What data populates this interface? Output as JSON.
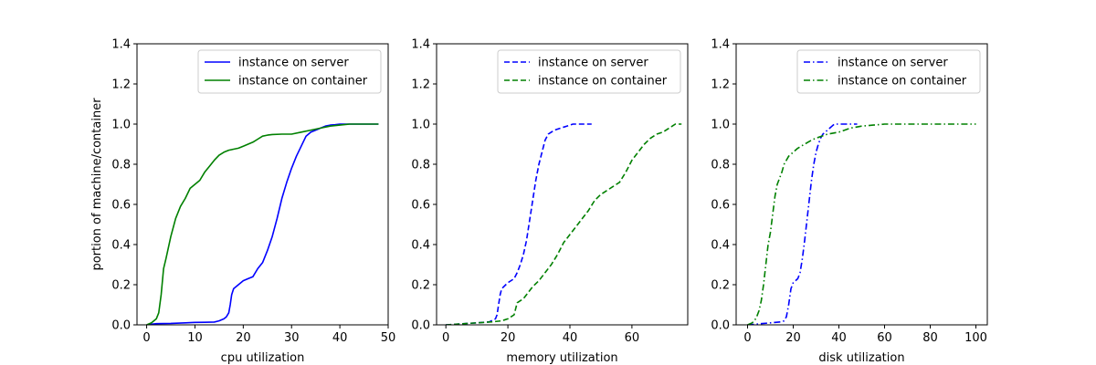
{
  "figure": {
    "ylabel": "portion of machine/container"
  },
  "chart_data": [
    {
      "type": "line",
      "xlabel": "cpu utilization",
      "ylabel": "portion of machine/container",
      "xlim": [
        -2,
        50
      ],
      "ylim": [
        0,
        1.4
      ],
      "xticks": [
        0,
        10,
        20,
        30,
        40,
        50
      ],
      "yticks": [
        0.0,
        0.2,
        0.4,
        0.6,
        0.8,
        1.0,
        1.2,
        1.4
      ],
      "grid": false,
      "legend": "top-right",
      "series": [
        {
          "name": "instance on server",
          "color": "#0000ff",
          "dash": "solid",
          "x": [
            0,
            1,
            2,
            5,
            8,
            10,
            12,
            14,
            15,
            16,
            16.5,
            17,
            17.3,
            17.6,
            18,
            19,
            20,
            21,
            22,
            23,
            24,
            25,
            26,
            27,
            28,
            29,
            30,
            31,
            32,
            33,
            34,
            35,
            36,
            37,
            38,
            39,
            40,
            42,
            44,
            46,
            48
          ],
          "y": [
            0.0,
            0.003,
            0.006,
            0.007,
            0.01,
            0.012,
            0.013,
            0.014,
            0.02,
            0.03,
            0.04,
            0.06,
            0.1,
            0.15,
            0.18,
            0.2,
            0.22,
            0.23,
            0.24,
            0.28,
            0.31,
            0.37,
            0.44,
            0.53,
            0.63,
            0.71,
            0.78,
            0.84,
            0.89,
            0.94,
            0.96,
            0.97,
            0.98,
            0.99,
            0.995,
            0.997,
            1.0,
            1.0,
            1.0,
            1.0,
            1.0
          ]
        },
        {
          "name": "instance on container",
          "color": "#008000",
          "dash": "solid",
          "x": [
            0,
            1,
            2,
            2.5,
            3,
            3.5,
            4,
            5,
            6,
            7,
            8,
            9,
            10,
            11,
            12,
            13,
            14,
            15,
            16,
            17,
            18,
            19,
            20,
            21,
            22,
            23,
            24,
            25,
            26,
            28,
            30,
            32,
            34,
            36,
            38,
            40,
            42,
            45,
            48
          ],
          "y": [
            0.0,
            0.01,
            0.03,
            0.06,
            0.15,
            0.28,
            0.33,
            0.44,
            0.53,
            0.59,
            0.63,
            0.68,
            0.7,
            0.72,
            0.76,
            0.79,
            0.82,
            0.845,
            0.86,
            0.87,
            0.875,
            0.88,
            0.89,
            0.9,
            0.91,
            0.925,
            0.94,
            0.945,
            0.948,
            0.95,
            0.95,
            0.96,
            0.97,
            0.98,
            0.99,
            0.995,
            1.0,
            1.0,
            1.0
          ]
        }
      ]
    },
    {
      "type": "line",
      "xlabel": "memory utilization",
      "ylabel": "",
      "xlim": [
        -3,
        78
      ],
      "ylim": [
        0,
        1.4
      ],
      "xticks": [
        0,
        20,
        40,
        60
      ],
      "yticks": [
        0.0,
        0.2,
        0.4,
        0.6,
        0.8,
        1.0,
        1.2,
        1.4
      ],
      "grid": false,
      "legend": "top-right",
      "series": [
        {
          "name": "instance on server",
          "color": "#0000ff",
          "dash": "dashed",
          "x": [
            0,
            5,
            10,
            14,
            16,
            16.5,
            17,
            17.5,
            18,
            20,
            22,
            23,
            24,
            25,
            26,
            27,
            28,
            29,
            30,
            31,
            32,
            33,
            34,
            35,
            37,
            39,
            41,
            43,
            45,
            47
          ],
          "y": [
            0.0,
            0.005,
            0.01,
            0.015,
            0.03,
            0.05,
            0.1,
            0.15,
            0.18,
            0.21,
            0.23,
            0.26,
            0.3,
            0.35,
            0.42,
            0.52,
            0.62,
            0.72,
            0.8,
            0.86,
            0.92,
            0.95,
            0.96,
            0.97,
            0.98,
            0.99,
            1.0,
            1.0,
            1.0,
            1.0
          ]
        },
        {
          "name": "instance on container",
          "color": "#008000",
          "dash": "dashed",
          "x": [
            0,
            5,
            10,
            15,
            18,
            20,
            21,
            22,
            23,
            24,
            25,
            26,
            28,
            30,
            32,
            34,
            36,
            38,
            40,
            42,
            44,
            46,
            48,
            50,
            52,
            54,
            56,
            58,
            60,
            62,
            64,
            66,
            68,
            70,
            72,
            74,
            76
          ],
          "y": [
            0.0,
            0.005,
            0.01,
            0.015,
            0.02,
            0.03,
            0.04,
            0.05,
            0.11,
            0.12,
            0.13,
            0.15,
            0.19,
            0.22,
            0.26,
            0.3,
            0.35,
            0.41,
            0.45,
            0.49,
            0.53,
            0.57,
            0.62,
            0.65,
            0.67,
            0.69,
            0.71,
            0.76,
            0.82,
            0.86,
            0.9,
            0.93,
            0.95,
            0.96,
            0.98,
            1.0,
            1.0
          ]
        }
      ]
    },
    {
      "type": "line",
      "xlabel": "disk utilization",
      "ylabel": "",
      "xlim": [
        -5,
        105
      ],
      "ylim": [
        0,
        1.4
      ],
      "xticks": [
        0,
        20,
        40,
        60,
        80,
        100
      ],
      "yticks": [
        0.0,
        0.2,
        0.4,
        0.6,
        0.8,
        1.0,
        1.2,
        1.4
      ],
      "grid": false,
      "legend": "top-right",
      "series": [
        {
          "name": "instance on server",
          "color": "#0000ff",
          "dash": "dashdot",
          "x": [
            0,
            5,
            10,
            15,
            16,
            17,
            18,
            19,
            20,
            21,
            22,
            23,
            24,
            25,
            26,
            27,
            28,
            29,
            30,
            31,
            32,
            33,
            34,
            35,
            36,
            37,
            38,
            40,
            42,
            45,
            48
          ],
          "y": [
            0.0,
            0.005,
            0.01,
            0.015,
            0.02,
            0.04,
            0.1,
            0.18,
            0.21,
            0.22,
            0.23,
            0.26,
            0.33,
            0.42,
            0.52,
            0.62,
            0.72,
            0.8,
            0.86,
            0.9,
            0.93,
            0.95,
            0.96,
            0.97,
            0.98,
            0.99,
            1.0,
            1.0,
            1.0,
            1.0,
            1.0
          ]
        },
        {
          "name": "instance on container",
          "color": "#008000",
          "dash": "dashdot",
          "x": [
            0,
            2,
            3,
            4,
            5,
            6,
            7,
            8,
            9,
            10,
            11,
            12,
            13,
            14,
            15,
            16,
            17,
            18,
            20,
            22,
            25,
            28,
            30,
            35,
            40,
            45,
            50,
            55,
            60,
            70,
            80,
            90,
            100
          ],
          "y": [
            0.0,
            0.01,
            0.02,
            0.04,
            0.07,
            0.12,
            0.2,
            0.3,
            0.4,
            0.46,
            0.55,
            0.64,
            0.7,
            0.73,
            0.76,
            0.8,
            0.82,
            0.84,
            0.86,
            0.88,
            0.9,
            0.92,
            0.93,
            0.95,
            0.96,
            0.98,
            0.99,
            0.995,
            1.0,
            1.0,
            1.0,
            1.0,
            1.0
          ]
        }
      ]
    }
  ]
}
